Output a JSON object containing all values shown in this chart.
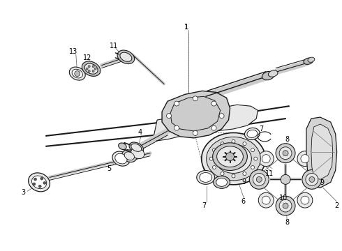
{
  "bg_color": "#ffffff",
  "line_color": "#1a1a1a",
  "gray_fill": "#d0d0d0",
  "light_gray": "#e8e8e8",
  "mid_gray": "#b8b8b8",
  "dark_gray": "#888888",
  "figsize": [
    4.9,
    3.6
  ],
  "dpi": 100,
  "xlim": [
    0,
    490
  ],
  "ylim": [
    0,
    360
  ]
}
